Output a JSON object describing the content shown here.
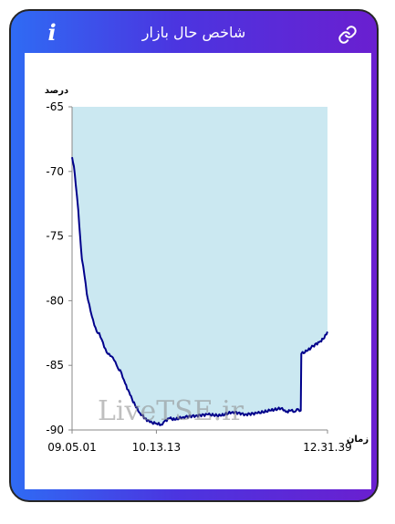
{
  "header": {
    "title": "شاخص حال بازار",
    "info_icon": "info-icon",
    "info_glyph": "i",
    "link_icon": "link-icon"
  },
  "colors": {
    "gradient_start": "#2f6bf4",
    "gradient_end": "#6a1fd0",
    "line": "#00008b",
    "fill": "#cbe8f1"
  },
  "watermark": "LiveTSE.ir",
  "chart_data": {
    "type": "area",
    "ylabel": "درصد",
    "xlabel": "زمان",
    "ylim": [
      -90,
      -65
    ],
    "yticks": [
      -65,
      -70,
      -75,
      -80,
      -85,
      -90
    ],
    "xlim": [
      "09:05:01",
      "12:31:39"
    ],
    "xticks": [
      "09.05.01",
      "10.13.13",
      "12.31.39"
    ],
    "area_between": "series and top of the plot (-65)",
    "grid": false,
    "series": [
      {
        "x": [
          "09:05:01",
          "09:06:30",
          "09:08:00",
          "09:10:00",
          "09:11:30",
          "09:13:00",
          "09:15:00",
          "09:17:00",
          "09:19:00",
          "09:21:00",
          "09:23:00",
          "09:25:00",
          "09:27:00",
          "09:29:00",
          "09:31:00",
          "09:33:00",
          "09:35:00",
          "09:37:00",
          "09:39:00",
          "09:42:00",
          "09:45:00",
          "09:48:00",
          "09:52:00",
          "09:56:00",
          "10:00:00",
          "10:04:00",
          "10:08:00",
          "10:13:13",
          "10:17:00",
          "10:20:00",
          "10:24:00",
          "10:28:00",
          "10:35:00",
          "10:45:00",
          "10:55:00",
          "11:05:00",
          "11:15:00",
          "11:25:00",
          "11:35:00",
          "11:45:00",
          "11:55:00",
          "11:58:00",
          "12:02:00",
          "12:05:00",
          "12:08:00",
          "12:10:00",
          "12:10:30",
          "12:15:00",
          "12:20:00",
          "12:25:00",
          "12:29:00",
          "12:31:39"
        ],
        "y": [
          -68.9,
          -69.6,
          -71.0,
          -73.0,
          -75.0,
          -76.8,
          -78.0,
          -79.5,
          -80.3,
          -81.2,
          -81.9,
          -82.4,
          -82.5,
          -83.0,
          -83.6,
          -84.0,
          -84.1,
          -84.3,
          -84.6,
          -85.2,
          -85.6,
          -86.4,
          -87.3,
          -88.1,
          -88.7,
          -89.1,
          -89.4,
          -89.5,
          -89.6,
          -89.3,
          -89.1,
          -89.2,
          -89.0,
          -88.9,
          -88.8,
          -88.9,
          -88.6,
          -88.8,
          -88.7,
          -88.5,
          -88.3,
          -88.6,
          -88.5,
          -88.6,
          -88.4,
          -88.5,
          -84.1,
          -83.9,
          -83.5,
          -83.2,
          -82.9,
          -82.4
        ]
      }
    ]
  }
}
